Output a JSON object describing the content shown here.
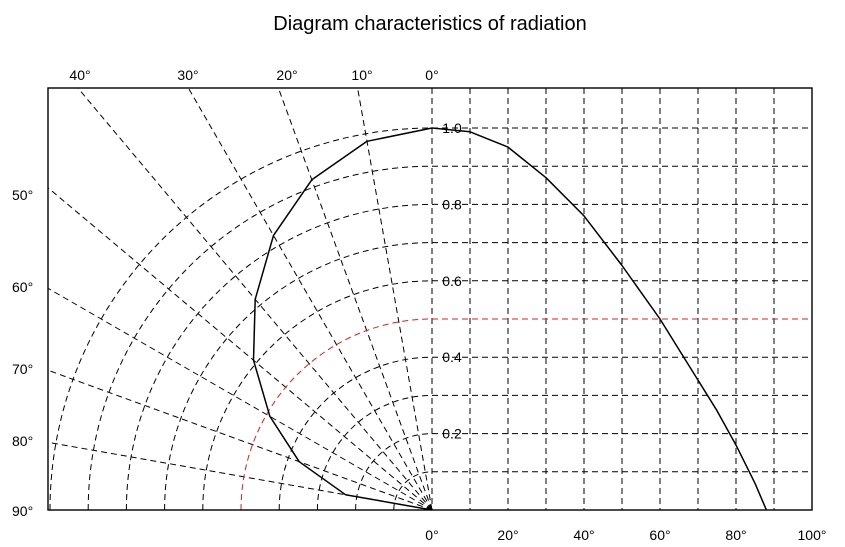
{
  "chart_data": {
    "type": "line",
    "title": "Diagram characteristics of radiation",
    "subtitle": "",
    "polar": {
      "top_angle_ticks": [
        "40°",
        "30°",
        "20°",
        "10°",
        "0°"
      ],
      "top_angle_values": [
        40,
        30,
        20,
        10,
        0
      ],
      "left_angle_ticks": [
        "50°",
        "60°",
        "70°",
        "80°",
        "90°"
      ],
      "left_angle_values": [
        50,
        60,
        70,
        80,
        90
      ],
      "radius_ticks": [
        "1.0",
        "0.8",
        "0.6",
        "0.4",
        "0.2"
      ],
      "radius_values": [
        1.0,
        0.8,
        0.6,
        0.4,
        0.2
      ],
      "radius_rings": [
        0.1,
        0.2,
        0.3,
        0.4,
        0.5,
        0.6,
        0.7,
        0.8,
        0.9,
        1.0
      ],
      "spokes_deg": [
        10,
        20,
        30,
        40,
        50,
        60,
        70,
        80
      ],
      "highlight_ring": 0.5,
      "series": [
        {
          "angle_deg": [
            0,
            10,
            20,
            30,
            40,
            50,
            60,
            70,
            80,
            90
          ],
          "relative_intensity": [
            1.0,
            0.98,
            0.92,
            0.83,
            0.72,
            0.61,
            0.49,
            0.37,
            0.23,
            0.0
          ]
        }
      ]
    },
    "cartesian": {
      "x_ticks": [
        "0°",
        "20°",
        "40°",
        "60°",
        "80°",
        "100°"
      ],
      "x_values": [
        0,
        20,
        40,
        60,
        80,
        100
      ],
      "xlim": [
        0,
        100
      ],
      "ylim": [
        0,
        1.0
      ],
      "highlight_y": 0.5,
      "series": [
        {
          "x": [
            0,
            10,
            20,
            30,
            40,
            50,
            55,
            60,
            65,
            70,
            75,
            80,
            85,
            88
          ],
          "y": [
            1.0,
            0.99,
            0.95,
            0.87,
            0.77,
            0.64,
            0.57,
            0.5,
            0.42,
            0.34,
            0.26,
            0.17,
            0.07,
            0.0
          ]
        }
      ]
    },
    "grid": true,
    "colors": {
      "grid": "#000000",
      "highlight": "#d42020",
      "curve": "#000000"
    }
  }
}
